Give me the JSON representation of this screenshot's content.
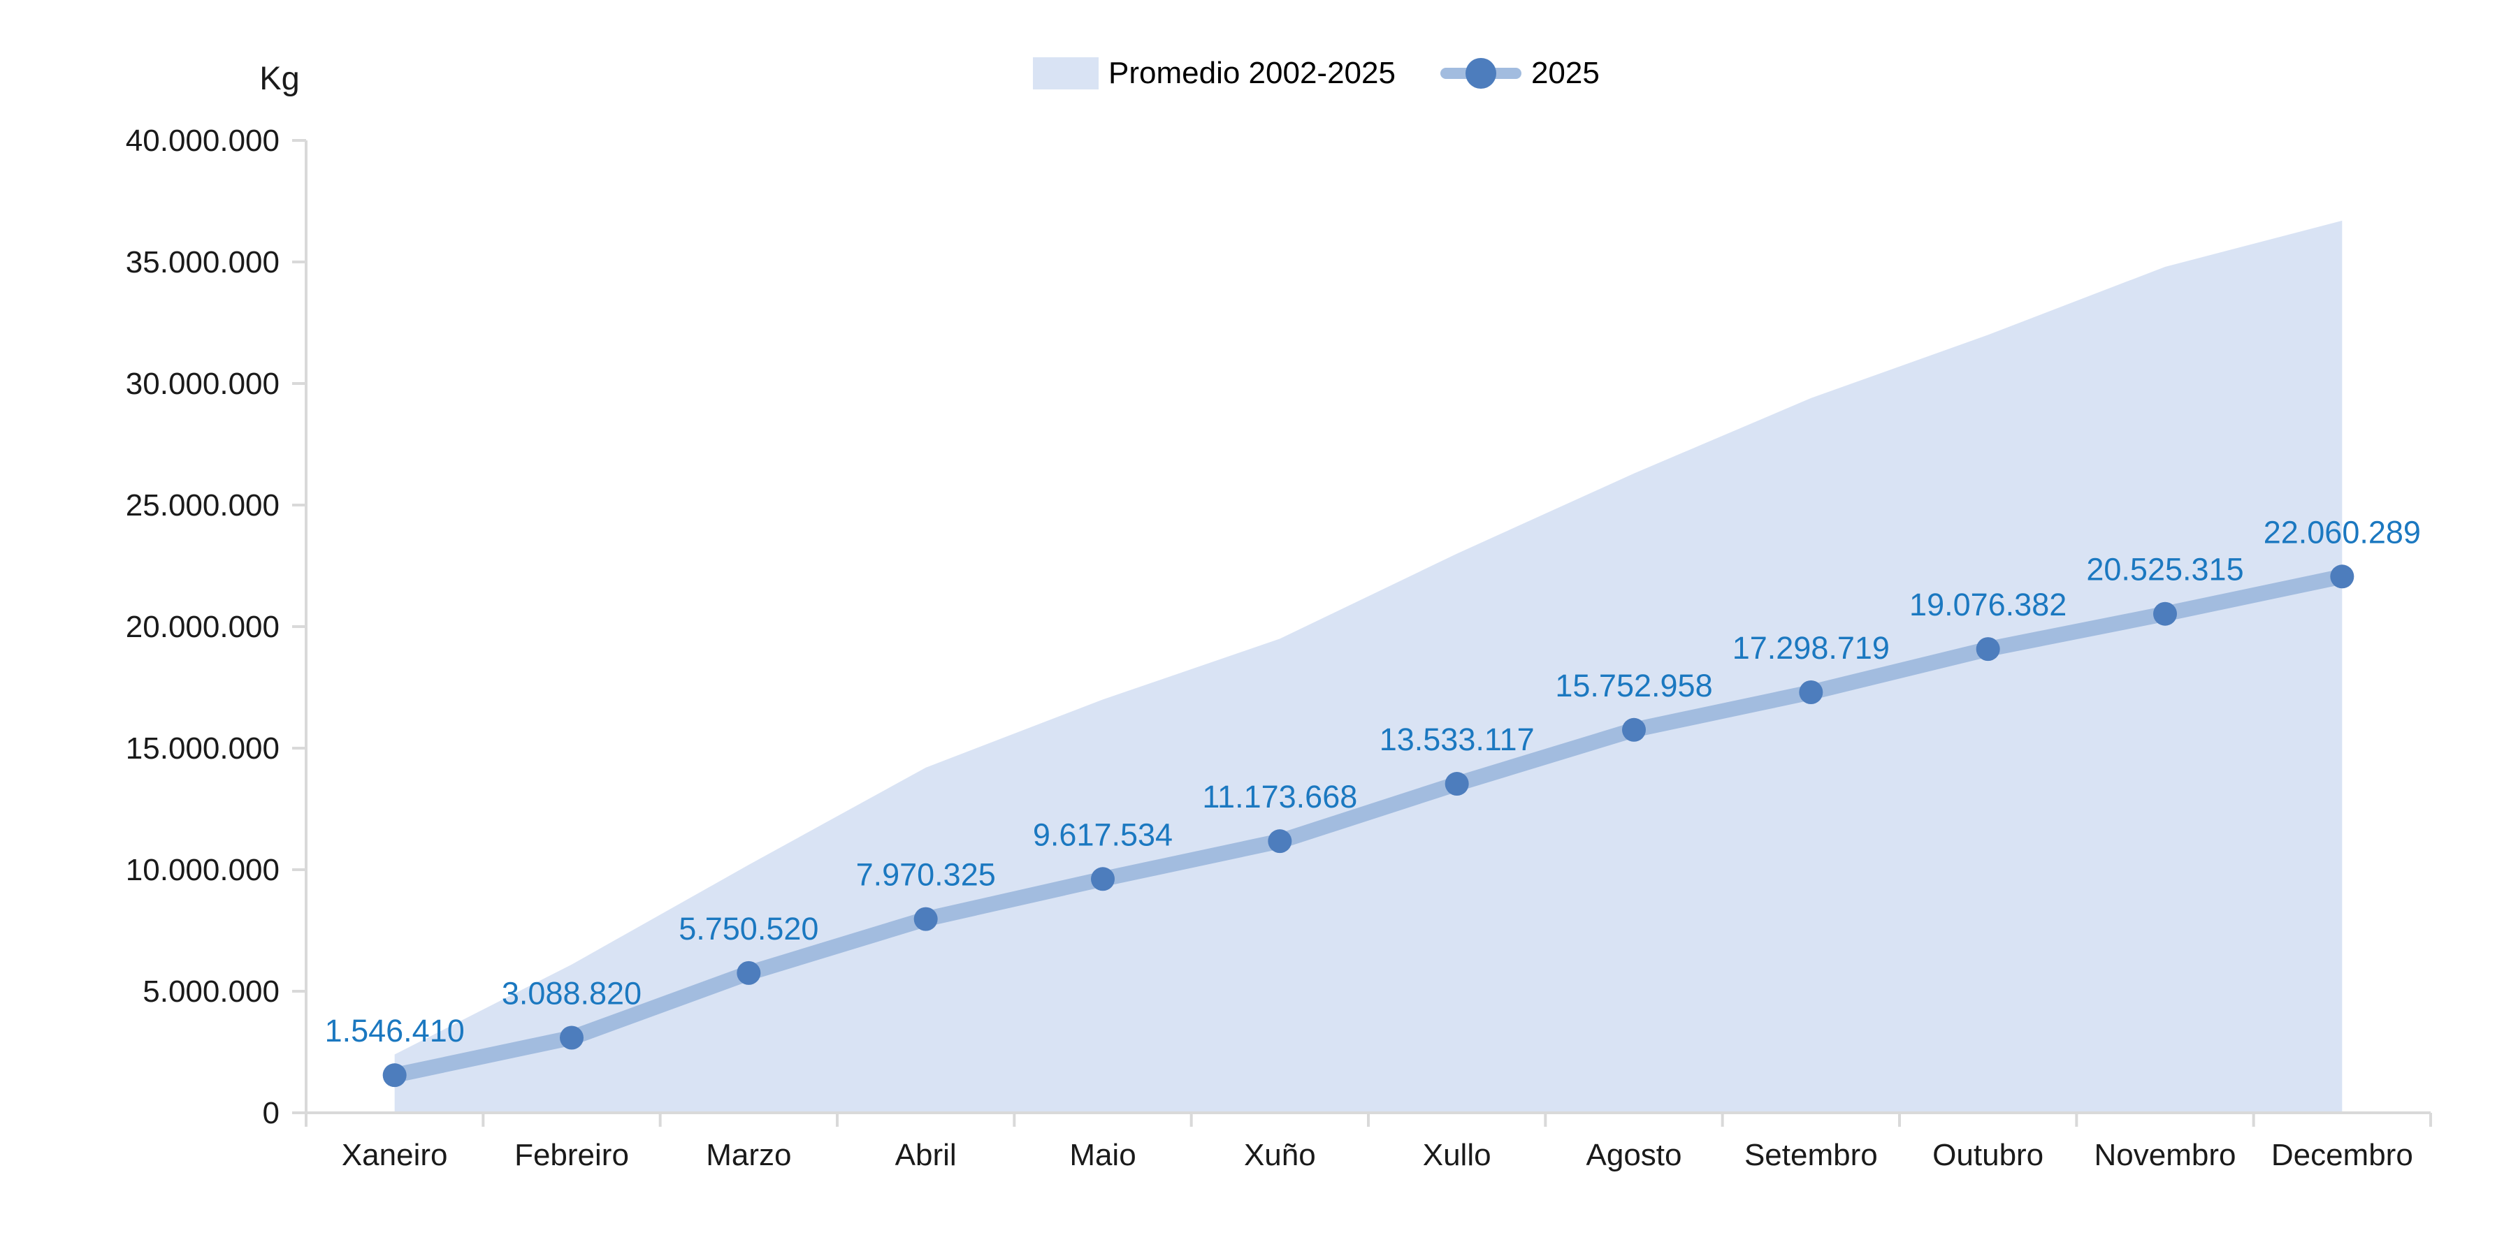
{
  "axis_unit_label": "Kg",
  "legend": {
    "items": [
      {
        "label": "Promedio 2002-2025",
        "type": "area",
        "color": "#d9e3f4"
      },
      {
        "label": "2025",
        "type": "line-marker",
        "line_color": "#a2bcdf",
        "marker_color": "#4d7dbd"
      }
    ]
  },
  "chart_data": {
    "type": "area",
    "title": "",
    "ylabel": "Kg",
    "xlabel": "",
    "grid": false,
    "legend_position": "top-center",
    "ylim": [
      0,
      40000000
    ],
    "y_tick_interval": 5000000,
    "y_tick_labels": [
      "0",
      "5.000.000",
      "10.000.000",
      "15.000.000",
      "20.000.000",
      "25.000.000",
      "30.000.000",
      "35.000.000",
      "40.000.000"
    ],
    "categories": [
      "Xaneiro",
      "Febreiro",
      "Marzo",
      "Abril",
      "Maio",
      "Xuño",
      "Xullo",
      "Agosto",
      "Setembro",
      "Outubro",
      "Novembro",
      "Decembro"
    ],
    "series": [
      {
        "name": "Promedio 2002-2025",
        "type": "area",
        "color": "#d9e3f4",
        "values": [
          2400000,
          6100000,
          10200000,
          14200000,
          17000000,
          19500000,
          23000000,
          26300000,
          29400000,
          32000000,
          34800000,
          36700000
        ]
      },
      {
        "name": "2025",
        "type": "line",
        "color": "#a2bcdf",
        "marker_color": "#4d7dbd",
        "label_color": "#1b78c0",
        "values": [
          1546410,
          3088820,
          5750520,
          7970325,
          9617534,
          11173668,
          13533117,
          15752958,
          17298719,
          19076382,
          20525315,
          22060289
        ],
        "data_labels": [
          "1.546.410",
          "3.088.820",
          "5.750.520",
          "7.970.325",
          "9.617.534",
          "11.173.668",
          "13.533.117",
          "15.752.958",
          "17.298.719",
          "19.076.382",
          "20.525.315",
          "22.060.289"
        ]
      }
    ],
    "axis_color": "#d9d9d9",
    "tick_label_color": "#1a1a1a"
  }
}
